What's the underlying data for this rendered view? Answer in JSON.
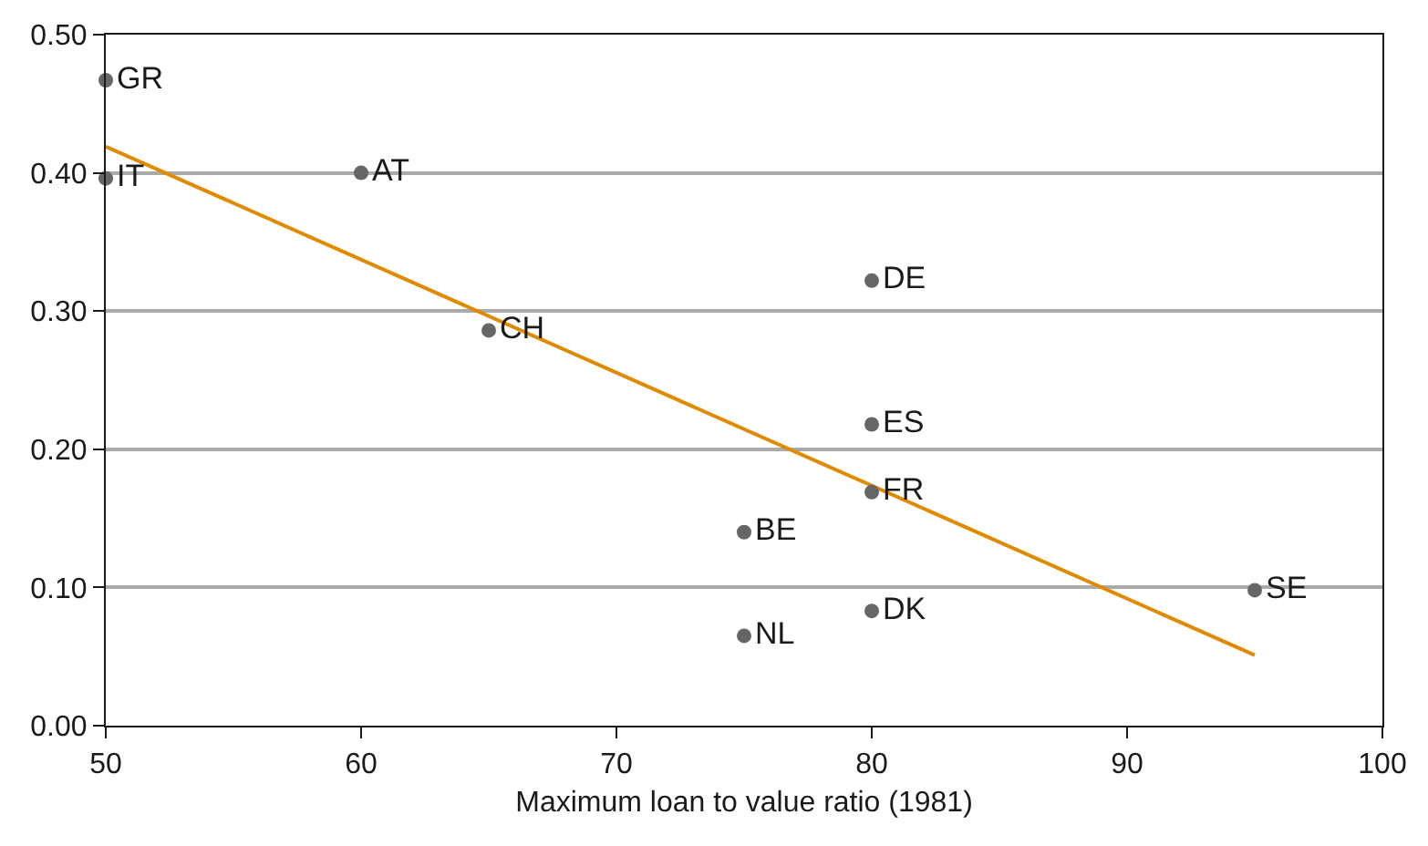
{
  "chart_data": {
    "type": "scatter",
    "xlabel": "Maximum loan to value ratio (1981)",
    "series": [
      {
        "marker": "circle",
        "color": "#666666",
        "x": [
          50,
          50,
          60,
          65,
          80,
          80,
          80,
          75,
          75,
          80,
          95
        ],
        "values": [
          0.467,
          0.396,
          0.4,
          0.286,
          0.322,
          0.218,
          0.169,
          0.14,
          0.065,
          0.083,
          0.098
        ],
        "value_labels": [
          "GR",
          "IT",
          "AT",
          "CH",
          "DE",
          "ES",
          "FR",
          "BE",
          "NL",
          "DK",
          "SE"
        ]
      },
      {
        "type": "line",
        "color": "#e08a00",
        "x": [
          50,
          95
        ],
        "values": [
          0.419,
          0.051
        ]
      }
    ],
    "xlim": [
      50,
      100
    ],
    "xticks": [
      50,
      60,
      70,
      80,
      90,
      100
    ],
    "ylim": [
      0,
      0.5
    ],
    "yticks": [
      {
        "value": 0,
        "label": "0.00"
      },
      {
        "value": 0.1,
        "label": "0.10"
      },
      {
        "value": 0.2,
        "label": "0.20"
      },
      {
        "value": 0.3,
        "label": "0.30"
      },
      {
        "value": 0.4,
        "label": "0.40"
      },
      {
        "value": 0.5,
        "label": "0.50"
      }
    ],
    "grid": "y"
  }
}
